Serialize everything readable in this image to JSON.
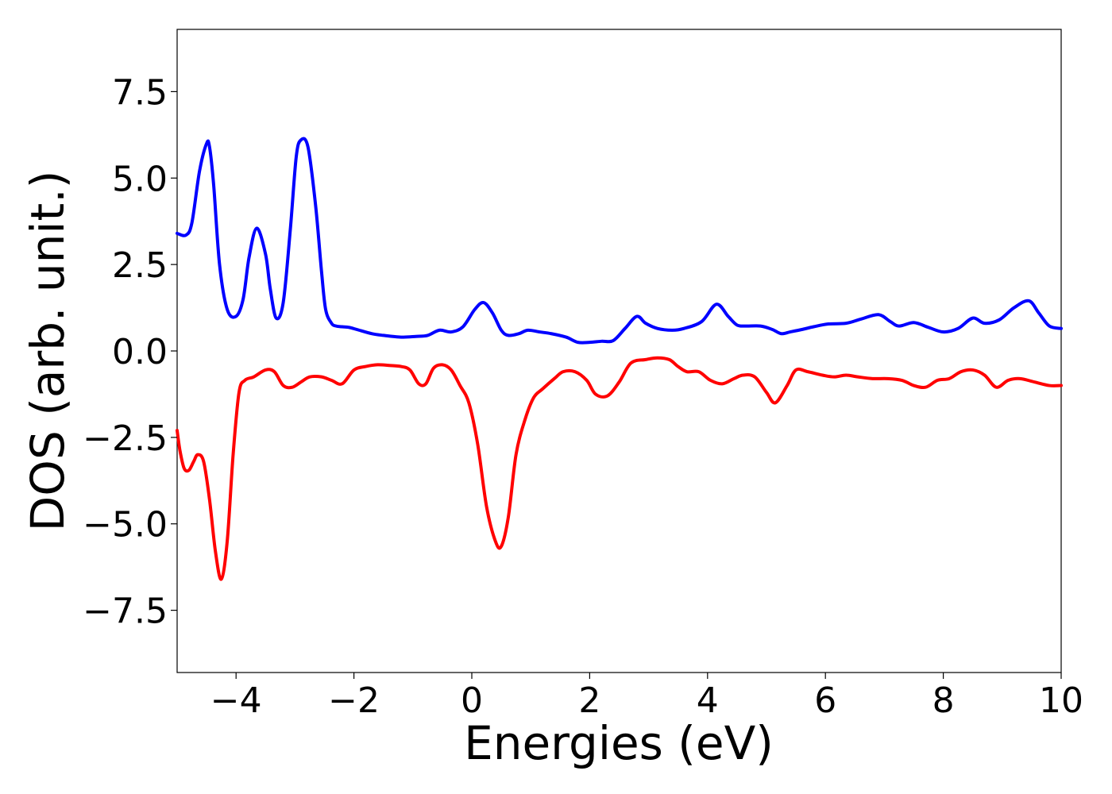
{
  "chart_data": {
    "type": "line",
    "title": "",
    "xlabel": "Energies (eV)",
    "ylabel": "DOS (arb. unit.)",
    "xlim": [
      -5,
      10
    ],
    "ylim": [
      -9.3,
      9.3
    ],
    "grid": false,
    "legend": "none",
    "xticks": [
      -4,
      -2,
      0,
      2,
      4,
      6,
      8,
      10
    ],
    "xtick_labels": [
      "−4",
      "−2",
      "0",
      "2",
      "4",
      "6",
      "8",
      "10"
    ],
    "yticks": [
      7.5,
      5.0,
      2.5,
      0.0,
      -2.5,
      -5.0,
      -7.5
    ],
    "ytick_labels": [
      "7.5",
      "5.0",
      "2.5",
      "0.0",
      "−2.5",
      "−5.0",
      "−7.5"
    ],
    "series": [
      {
        "color": "#0000ff",
        "x": [
          -5.0,
          -4.85,
          -4.75,
          -4.62,
          -4.5,
          -4.45,
          -4.38,
          -4.28,
          -4.15,
          -4.0,
          -3.88,
          -3.78,
          -3.65,
          -3.5,
          -3.42,
          -3.32,
          -3.2,
          -3.08,
          -2.98,
          -2.9,
          -2.78,
          -2.65,
          -2.55,
          -2.48,
          -2.38,
          -2.3,
          -2.2,
          -2.08,
          -1.95,
          -1.7,
          -1.5,
          -1.2,
          -0.95,
          -0.75,
          -0.55,
          -0.35,
          -0.15,
          0.05,
          0.2,
          0.35,
          0.5,
          0.62,
          0.8,
          0.95,
          1.15,
          1.35,
          1.6,
          1.8,
          2.0,
          2.2,
          2.4,
          2.6,
          2.8,
          2.95,
          3.15,
          3.4,
          3.6,
          3.9,
          4.15,
          4.35,
          4.5,
          4.65,
          4.9,
          5.1,
          5.25,
          5.4,
          5.6,
          5.8,
          6.05,
          6.35,
          6.6,
          6.9,
          7.1,
          7.25,
          7.5,
          7.75,
          8.0,
          8.25,
          8.5,
          8.7,
          8.95,
          9.2,
          9.45,
          9.62,
          9.8,
          10.0
        ],
        "y": [
          3.4,
          3.35,
          3.7,
          5.2,
          6.0,
          5.9,
          4.8,
          2.5,
          1.2,
          1.0,
          1.5,
          2.7,
          3.55,
          2.8,
          1.8,
          0.95,
          1.4,
          3.5,
          5.6,
          6.1,
          5.9,
          4.2,
          2.3,
          1.2,
          0.8,
          0.72,
          0.7,
          0.68,
          0.62,
          0.5,
          0.45,
          0.4,
          0.42,
          0.45,
          0.6,
          0.55,
          0.7,
          1.2,
          1.4,
          1.1,
          0.6,
          0.45,
          0.5,
          0.6,
          0.55,
          0.5,
          0.4,
          0.25,
          0.25,
          0.28,
          0.3,
          0.65,
          1.0,
          0.8,
          0.65,
          0.6,
          0.65,
          0.85,
          1.35,
          1.0,
          0.75,
          0.72,
          0.72,
          0.62,
          0.5,
          0.55,
          0.62,
          0.7,
          0.78,
          0.8,
          0.92,
          1.05,
          0.85,
          0.72,
          0.82,
          0.68,
          0.55,
          0.65,
          0.95,
          0.8,
          0.9,
          1.25,
          1.45,
          1.1,
          0.72,
          0.65
        ]
      },
      {
        "color": "#ff0000",
        "x": [
          -5.0,
          -4.95,
          -4.88,
          -4.8,
          -4.72,
          -4.65,
          -4.55,
          -4.45,
          -4.35,
          -4.25,
          -4.15,
          -4.05,
          -3.95,
          -3.85,
          -3.7,
          -3.5,
          -3.35,
          -3.2,
          -3.05,
          -2.9,
          -2.75,
          -2.55,
          -2.38,
          -2.2,
          -2.0,
          -1.8,
          -1.6,
          -1.4,
          -1.2,
          -1.05,
          -0.9,
          -0.78,
          -0.65,
          -0.5,
          -0.35,
          -0.2,
          -0.05,
          0.1,
          0.25,
          0.4,
          0.5,
          0.62,
          0.75,
          0.9,
          1.05,
          1.2,
          1.4,
          1.55,
          1.75,
          1.95,
          2.1,
          2.3,
          2.5,
          2.7,
          2.95,
          3.15,
          3.35,
          3.5,
          3.65,
          3.85,
          4.05,
          4.25,
          4.45,
          4.6,
          4.8,
          5.0,
          5.15,
          5.35,
          5.5,
          5.7,
          5.95,
          6.15,
          6.35,
          6.55,
          6.8,
          7.05,
          7.3,
          7.5,
          7.7,
          7.9,
          8.1,
          8.3,
          8.5,
          8.7,
          8.9,
          9.1,
          9.3,
          9.55,
          9.8,
          10.0
        ],
        "y": [
          -2.3,
          -2.9,
          -3.4,
          -3.45,
          -3.2,
          -3.0,
          -3.2,
          -4.3,
          -5.8,
          -6.6,
          -5.5,
          -3.0,
          -1.2,
          -0.85,
          -0.75,
          -0.55,
          -0.6,
          -1.0,
          -1.05,
          -0.9,
          -0.75,
          -0.75,
          -0.85,
          -0.95,
          -0.55,
          -0.45,
          -0.4,
          -0.42,
          -0.45,
          -0.55,
          -0.95,
          -0.95,
          -0.5,
          -0.4,
          -0.55,
          -1.0,
          -1.5,
          -2.7,
          -4.5,
          -5.5,
          -5.65,
          -4.8,
          -3.0,
          -2.0,
          -1.35,
          -1.1,
          -0.8,
          -0.6,
          -0.6,
          -0.85,
          -1.25,
          -1.3,
          -0.9,
          -0.35,
          -0.25,
          -0.2,
          -0.25,
          -0.45,
          -0.6,
          -0.6,
          -0.85,
          -0.95,
          -0.8,
          -0.7,
          -0.75,
          -1.2,
          -1.5,
          -1.0,
          -0.55,
          -0.6,
          -0.7,
          -0.75,
          -0.7,
          -0.75,
          -0.8,
          -0.8,
          -0.85,
          -1.0,
          -1.05,
          -0.85,
          -0.8,
          -0.6,
          -0.55,
          -0.7,
          -1.05,
          -0.85,
          -0.8,
          -0.9,
          -1.0,
          -1.0
        ]
      }
    ]
  }
}
